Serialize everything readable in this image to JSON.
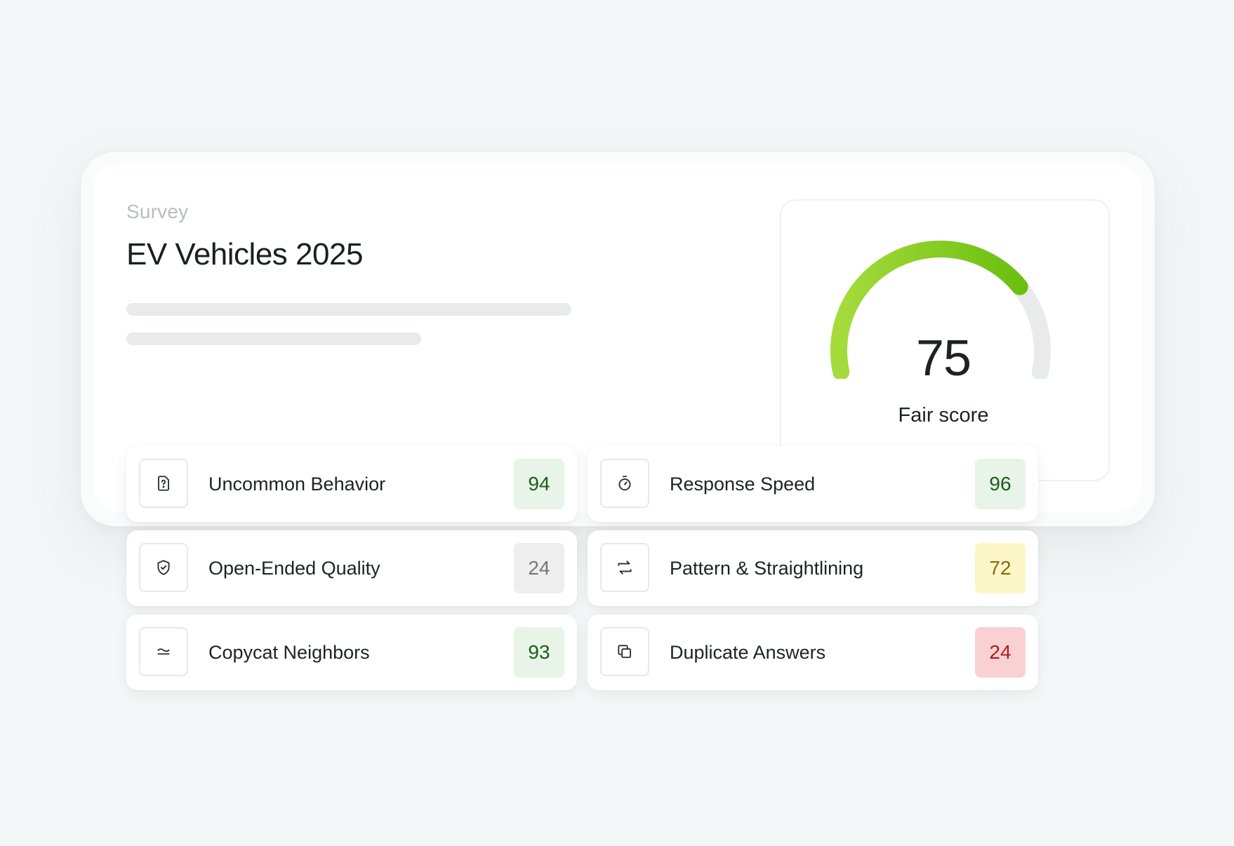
{
  "survey": {
    "label": "Survey",
    "title": "EV Vehicles 2025"
  },
  "score": {
    "value": "75",
    "label": "Fair score",
    "fraction": 0.75,
    "gauge_colors": [
      "#a6db3c",
      "#6bbf10"
    ],
    "track_color": "#e9eaeb"
  },
  "metrics": [
    {
      "label": "Uncommon Behavior",
      "value": "94",
      "icon": "question-file-icon",
      "badge_bg": "#e7f4e7",
      "badge_fg": "#1d5c1d"
    },
    {
      "label": "Response Speed",
      "value": "96",
      "icon": "stopwatch-icon",
      "badge_bg": "#e7f4e7",
      "badge_fg": "#1d5c1d"
    },
    {
      "label": "Open-Ended Quality",
      "value": "24",
      "icon": "shield-check-icon",
      "badge_bg": "#eeeeee",
      "badge_fg": "#777777"
    },
    {
      "label": "Pattern & Straightlining",
      "value": "72",
      "icon": "repeat-icon",
      "badge_bg": "#fdf6c8",
      "badge_fg": "#8a6a08"
    },
    {
      "label": "Copycat Neighbors",
      "value": "93",
      "icon": "approx-equal-icon",
      "badge_bg": "#e7f4e7",
      "badge_fg": "#1d5c1d"
    },
    {
      "label": "Duplicate Answers",
      "value": "24",
      "icon": "copy-icon",
      "badge_bg": "#f9d1d3",
      "badge_fg": "#b31b1b"
    }
  ]
}
